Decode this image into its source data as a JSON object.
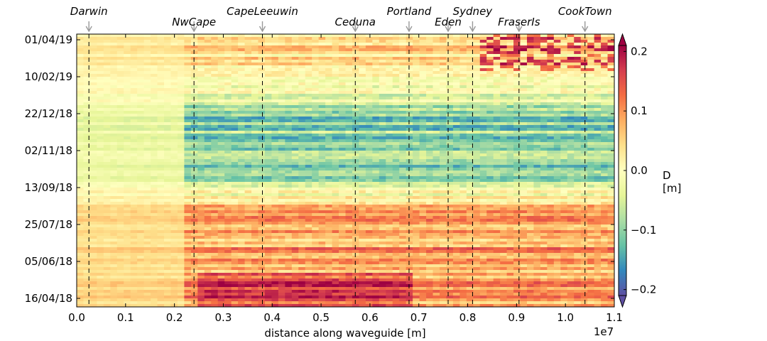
{
  "chart_data": {
    "type": "heatmap",
    "xlabel": "distance along waveguide [m]",
    "x_offset_label": "1e7",
    "xlim": [
      0.0,
      1.1
    ],
    "x_ticks": [
      "0.0",
      "0.1",
      "0.2",
      "0.3",
      "0.4",
      "0.5",
      "0.6",
      "0.7",
      "0.8",
      "0.9",
      "1.0",
      "1.1"
    ],
    "y_ticks": [
      "01/04/19",
      "10/02/19",
      "22/12/18",
      "02/11/18",
      "13/09/18",
      "25/07/18",
      "05/06/18",
      "16/04/18"
    ],
    "colorbar": {
      "label_line1": "D",
      "label_line2": "[m]",
      "range": [
        -0.21,
        0.21
      ],
      "ticks": [
        "0.2",
        "0.1",
        "0.0",
        "−0.1",
        "−0.2"
      ],
      "colormap": "Spectral",
      "colors": [
        "#5e4fa2",
        "#3288bd",
        "#66c2a5",
        "#abdda4",
        "#e6f598",
        "#ffffbf",
        "#fee08b",
        "#fdae61",
        "#f46d43",
        "#d53e4f",
        "#9e0142"
      ]
    },
    "stations": [
      {
        "name": "Darwin",
        "x": 0.025
      },
      {
        "name": "NwCape",
        "x": 0.24
      },
      {
        "name": "CapeLeeuwin",
        "x": 0.38
      },
      {
        "name": "Ceduna",
        "x": 0.57
      },
      {
        "name": "Portland",
        "x": 0.68
      },
      {
        "name": "Eden",
        "x": 0.76
      },
      {
        "name": "Sydney",
        "x": 0.81
      },
      {
        "name": "FraserIs",
        "x": 0.905
      },
      {
        "name": "CookTown",
        "x": 1.04
      }
    ],
    "grid": false
  }
}
